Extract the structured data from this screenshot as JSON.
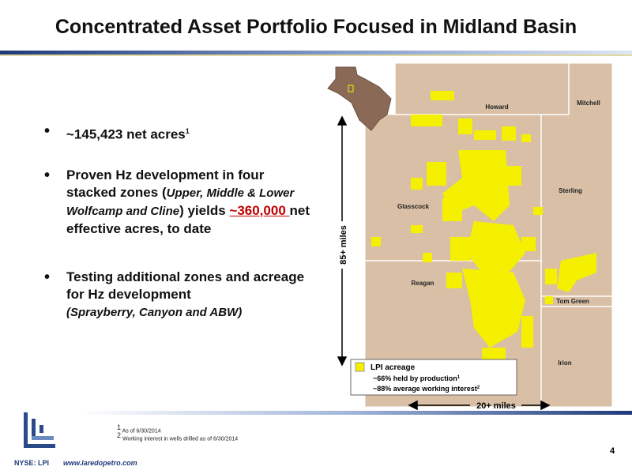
{
  "header": {
    "title": "Concentrated Asset Portfolio Focused in Midland Basin"
  },
  "bullets": [
    {
      "text": "~145,423 net acres",
      "sup": "1"
    },
    {
      "text": "Proven Hz development in four stacked zones ",
      "open": "(",
      "italic": "Upper, Middle & Lower Wolfcamp and Cline",
      "close": ")",
      "after": " yields ",
      "highlight": "~360,000 ",
      "end": "net effective acres, to date"
    },
    {
      "text": "Testing additional zones and acreage for Hz development",
      "italic": "(Sprayberry, Canyon and ABW)"
    }
  ],
  "map": {
    "counties": [
      "Howard",
      "Mitchell",
      "Glasscock",
      "Sterling",
      "Reagan",
      "Tom Green",
      "Irion"
    ],
    "vertical_scale": "85+ miles",
    "horizontal_scale": "20+ miles",
    "legend": {
      "label": "LPI acreage",
      "line1": "~66% held by production",
      "sup1": "1",
      "line2": "~88% average working interest",
      "sup2": "2"
    }
  },
  "footnotes": [
    {
      "mark": "1",
      "text": "As of 6/30/2014"
    },
    {
      "mark": "2",
      "text": "Working interest in wells drilled as of 6/30/2014"
    }
  ],
  "footer": {
    "ticker": "NYSE: LPI",
    "website": "www.laredopetro.com",
    "page": "4"
  }
}
